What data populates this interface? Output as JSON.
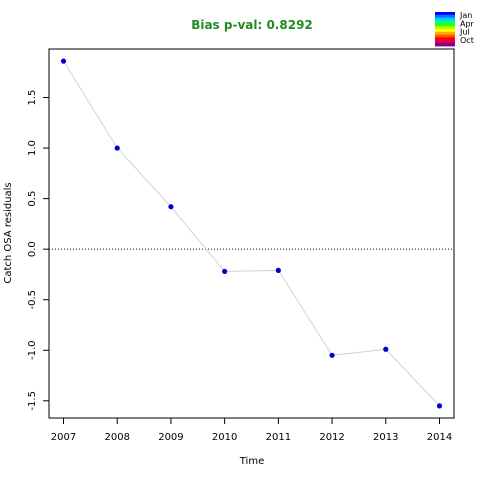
{
  "chart_data": {
    "type": "line",
    "title": "Bias p-val: 0.8292",
    "xlabel": "Time",
    "ylabel": "Catch OSA residuals",
    "x": [
      2007,
      2008,
      2009,
      2010,
      2011,
      2012,
      2013,
      2014
    ],
    "values": [
      1.86,
      1.0,
      0.42,
      -0.22,
      -0.21,
      -1.05,
      -0.99,
      -1.55
    ],
    "xlim": [
      2006.73,
      2014.27
    ],
    "ylim": [
      -1.67,
      1.98
    ],
    "x_ticks": [
      2007,
      2008,
      2009,
      2010,
      2011,
      2012,
      2013,
      2014
    ],
    "y_ticks": [
      -1.5,
      -1.0,
      -0.5,
      0.0,
      0.5,
      1.0,
      1.5
    ],
    "y_tick_labels": [
      "-1.5",
      "-1.0",
      "-0.5",
      "0.0",
      "0.5",
      "1.0",
      "1.5"
    ],
    "reference_line": 0,
    "grid": false,
    "legend": {
      "placement": "top-right",
      "entries": [
        "Jan",
        "Apr",
        "Jul",
        "Oct"
      ],
      "gradient": [
        "#0000ff",
        "#0077ff",
        "#00ccff",
        "#00ff88",
        "#33ff00",
        "#aaff00",
        "#ffff00",
        "#ffaa00",
        "#ff5500",
        "#ff0000",
        "#cc0055",
        "#880088"
      ]
    },
    "colors": {
      "title": "#228b22",
      "point": "#0000cd",
      "line": "#d3d3d3",
      "reference": "#000000"
    }
  }
}
